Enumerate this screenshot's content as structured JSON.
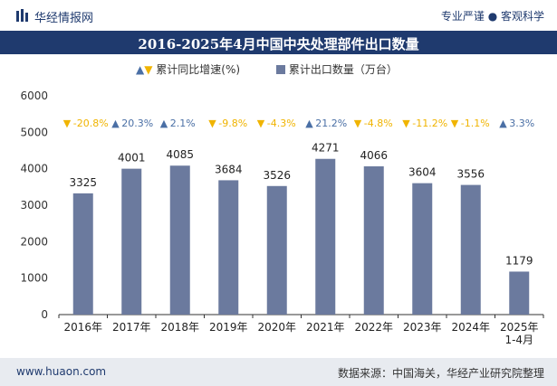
{
  "header": {
    "brand": "华经情报网",
    "tagline": "专业严谨 ● 客观科学"
  },
  "title": "2016-2025年4月中国中央处理部件出口数量",
  "legend": {
    "growth_label": "累计同比增速(%)",
    "export_label": "累计出口数量（万台）"
  },
  "footer": {
    "url": "www.huaon.com",
    "source": "数据来源：中国海关，华经产业研究院整理"
  },
  "colors": {
    "bar": "#6b7a9e",
    "up": "#4a6fa5",
    "down": "#f0b400",
    "header": "#1f3a6e"
  },
  "chart_data": {
    "type": "bar",
    "categories": [
      "2016年",
      "2017年",
      "2018年",
      "2019年",
      "2020年",
      "2021年",
      "2022年",
      "2023年",
      "2024年",
      "2025年\n1-4月"
    ],
    "series": [
      {
        "name": "累计出口数量（万台）",
        "values": [
          3325,
          4001,
          4085,
          3684,
          3526,
          4271,
          4066,
          3604,
          3556,
          1179
        ]
      },
      {
        "name": "累计同比增速(%)",
        "values": [
          -20.8,
          20.3,
          2.1,
          -9.8,
          -4.3,
          21.2,
          -4.8,
          -11.2,
          -1.1,
          3.3
        ]
      }
    ],
    "growth_labels": [
      "-20.8%",
      "20.3%",
      "2.1%",
      "-9.8%",
      "-4.3%",
      "21.2%",
      "-4.8%",
      "-11.2%",
      "-1.1%",
      "3.3%"
    ],
    "yticks": [
      0,
      1000,
      2000,
      3000,
      4000,
      5000,
      6000
    ],
    "ylim": [
      0,
      6000
    ]
  }
}
